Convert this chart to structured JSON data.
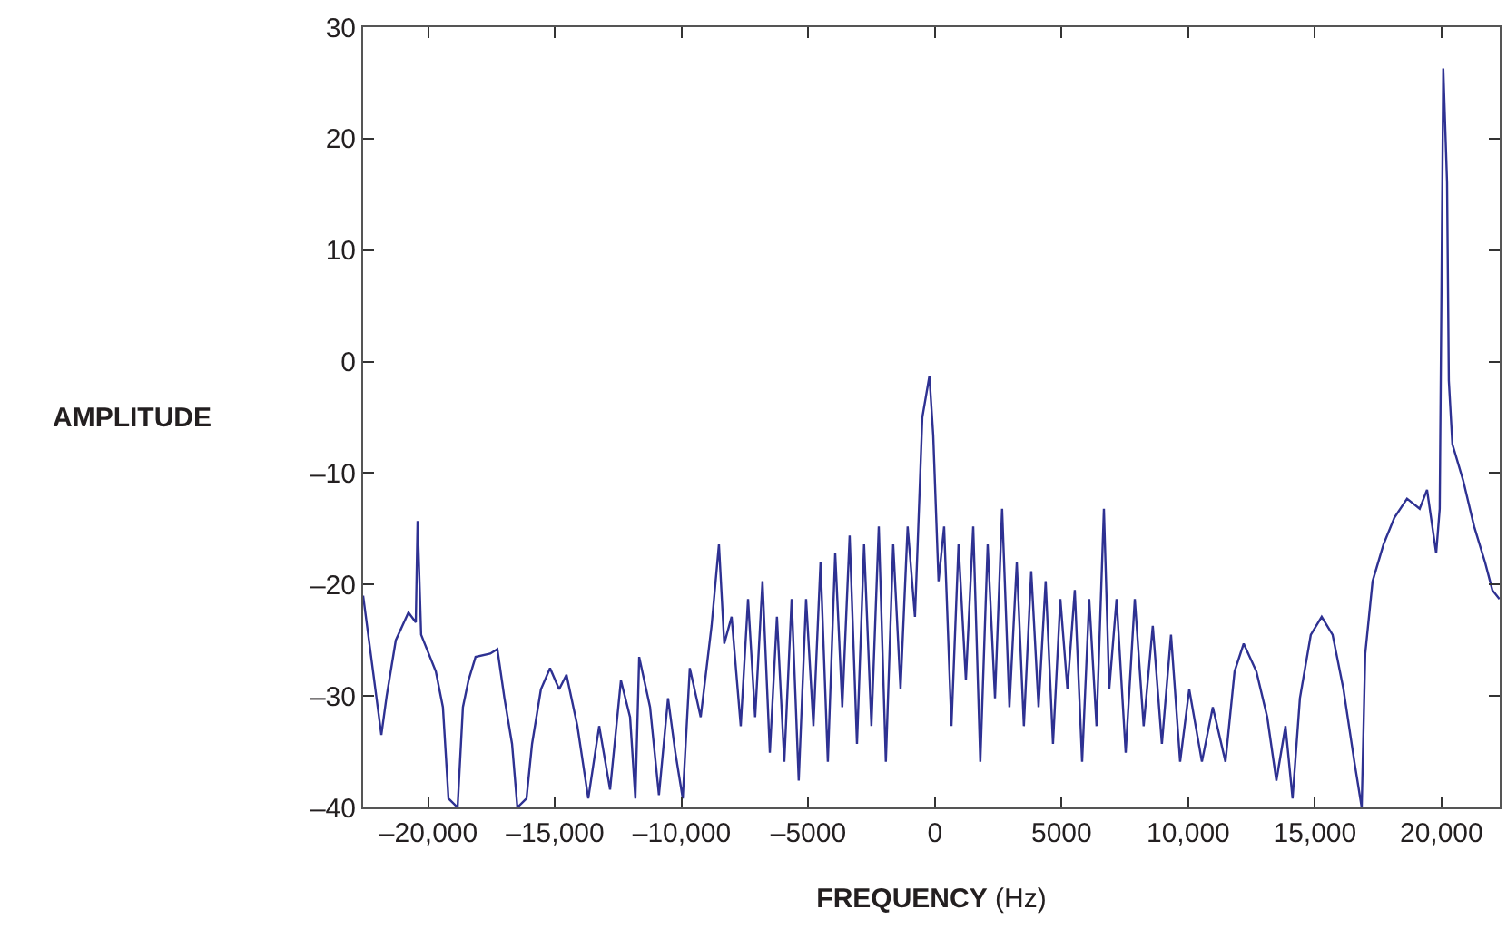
{
  "chart_data": {
    "type": "line",
    "xlabel": "FREQUENCY (Hz)",
    "ylabel": "AMPLITUDE",
    "xlim": [
      -22580,
      22300
    ],
    "ylim": [
      -40,
      30
    ],
    "xticks": [
      {
        "value": -20000,
        "label": "–20,000"
      },
      {
        "value": -15000,
        "label": "–15,000"
      },
      {
        "value": -10000,
        "label": "–10,000"
      },
      {
        "value": -5000,
        "label": "–5000"
      },
      0,
      {
        "value": 5000,
        "label": "5000"
      },
      {
        "value": 10000,
        "label": "10,000"
      },
      {
        "value": 15000,
        "label": "15,000"
      },
      {
        "value": 20000,
        "label": "20,000"
      }
    ],
    "yticks": [
      {
        "value": -40,
        "label": "–40"
      },
      {
        "value": -30,
        "label": "–30"
      },
      {
        "value": -20,
        "label": "–20"
      },
      {
        "value": -10,
        "label": "–10"
      },
      0,
      10,
      20,
      30
    ],
    "grid": false,
    "marker": "none",
    "line_style": "solid",
    "series": [
      {
        "color": "#2e3192",
        "x": [
          -22580,
          -21860,
          -21650,
          -21290,
          -20790,
          -20500,
          -20430,
          -20290,
          -19710,
          -19430,
          -19210,
          -18850,
          -18640,
          -18420,
          -18140,
          -17560,
          -17280,
          -17000,
          -16700,
          -16490,
          -16130,
          -15910,
          -15560,
          -15200,
          -14840,
          -14550,
          -14120,
          -13690,
          -13260,
          -12830,
          -12400,
          -12040,
          -11830,
          -11680,
          -11250,
          -10900,
          -10540,
          -10250,
          -9960,
          -9680,
          -9250,
          -8820,
          -8530,
          -8320,
          -8030,
          -7670,
          -7380,
          -7100,
          -6810,
          -6520,
          -6240,
          -5950,
          -5660,
          -5380,
          -5090,
          -4800,
          -4520,
          -4230,
          -3940,
          -3660,
          -3370,
          -3080,
          -2800,
          -2510,
          -2220,
          -1940,
          -1650,
          -1360,
          -1080,
          -790,
          -500,
          -220,
          -70,
          140,
          360,
          650,
          930,
          1220,
          1510,
          1790,
          2080,
          2370,
          2650,
          2940,
          3230,
          3510,
          3800,
          4090,
          4370,
          4660,
          4950,
          5230,
          5520,
          5810,
          6090,
          6380,
          6670,
          6880,
          7170,
          7530,
          7890,
          8240,
          8600,
          8960,
          9320,
          9680,
          10040,
          10540,
          10970,
          11470,
          11830,
          12190,
          12690,
          13120,
          13480,
          13840,
          14120,
          14410,
          14840,
          15270,
          15700,
          16130,
          16560,
          16850,
          16990,
          17280,
          17710,
          18140,
          18640,
          19140,
          19430,
          19790,
          19930,
          20070,
          20220,
          20290,
          20430,
          20860,
          21290,
          21720,
          22010,
          22290
        ],
        "values": [
          -21,
          -33.5,
          -30,
          -25,
          -22.5,
          -23.4,
          -14.3,
          -24.5,
          -27.8,
          -31,
          -39.2,
          -40,
          -31,
          -28.6,
          -26.5,
          -26.2,
          -25.8,
          -30.2,
          -34.3,
          -40,
          -39.2,
          -34.3,
          -29.4,
          -27.5,
          -29.4,
          -28.1,
          -32.7,
          -39.2,
          -32.7,
          -38.4,
          -28.6,
          -31.9,
          -39.2,
          -26.5,
          -31,
          -38.9,
          -30.2,
          -35.1,
          -39.2,
          -27.5,
          -31.9,
          -23.7,
          -16.4,
          -25.3,
          -22.9,
          -32.7,
          -21.3,
          -31.9,
          -19.7,
          -35.1,
          -22.9,
          -35.9,
          -21.3,
          -37.6,
          -21.3,
          -32.7,
          -18,
          -35.9,
          -17.2,
          -31,
          -15.6,
          -34.3,
          -16.4,
          -32.7,
          -14.8,
          -35.9,
          -16.4,
          -29.4,
          -14.8,
          -22.9,
          -5,
          -1.3,
          -6.6,
          -19.7,
          -14.8,
          -32.7,
          -16.4,
          -28.6,
          -14.8,
          -35.9,
          -16.4,
          -30.2,
          -13.2,
          -31,
          -18,
          -32.7,
          -18.8,
          -31,
          -19.7,
          -34.3,
          -21.3,
          -29.4,
          -20.5,
          -35.9,
          -21.3,
          -32.7,
          -13.2,
          -29.4,
          -21.3,
          -35.1,
          -21.3,
          -32.7,
          -23.7,
          -34.3,
          -24.5,
          -35.9,
          -29.4,
          -35.9,
          -31,
          -35.9,
          -27.8,
          -25.3,
          -27.8,
          -31.9,
          -37.6,
          -32.7,
          -39.2,
          -30.2,
          -24.5,
          -22.9,
          -24.5,
          -29.4,
          -35.9,
          -40,
          -26.2,
          -19.7,
          -16.4,
          -14,
          -12.3,
          -13.2,
          -11.5,
          -17.2,
          -13.2,
          26.3,
          16.1,
          -1.7,
          -7.4,
          -10.7,
          -14.8,
          -18,
          -20.5,
          -21.3
        ]
      }
    ]
  }
}
